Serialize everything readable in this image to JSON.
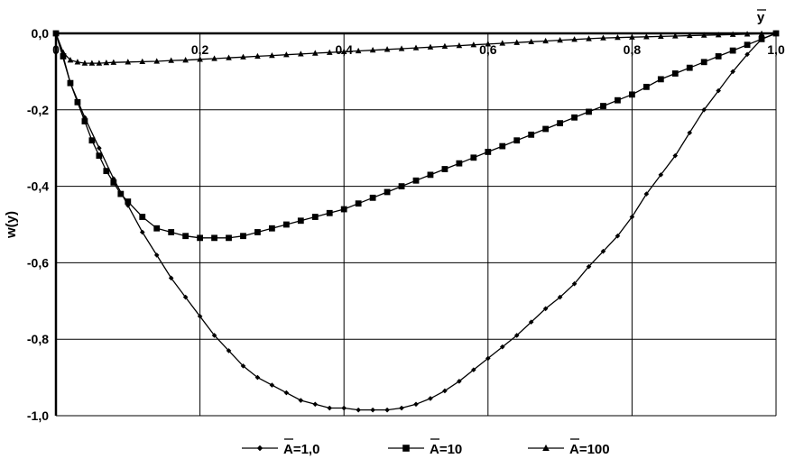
{
  "chart_data": {
    "type": "line",
    "xlabel": "y",
    "ylabel": "w(y)",
    "xlim": [
      0,
      1
    ],
    "ylim": [
      -1,
      0
    ],
    "x_ticks": [
      "0",
      "0,2",
      "0,4",
      "0,6",
      "0,8",
      "1,0"
    ],
    "y_ticks": [
      "0,0",
      "-0,2",
      "-0,4",
      "-0,6",
      "-0,8",
      "-1,0"
    ],
    "grid": true,
    "legend_position": "bottom",
    "series": [
      {
        "name": "A=1,0",
        "marker": "diamond",
        "x": [
          0,
          0.02,
          0.04,
          0.06,
          0.08,
          0.1,
          0.12,
          0.14,
          0.16,
          0.18,
          0.2,
          0.22,
          0.24,
          0.26,
          0.28,
          0.3,
          0.32,
          0.34,
          0.36,
          0.38,
          0.4,
          0.42,
          0.44,
          0.46,
          0.48,
          0.5,
          0.52,
          0.54,
          0.56,
          0.58,
          0.6,
          0.62,
          0.64,
          0.66,
          0.68,
          0.7,
          0.72,
          0.74,
          0.76,
          0.78,
          0.8,
          0.82,
          0.84,
          0.86,
          0.88,
          0.9,
          0.92,
          0.94,
          0.96,
          0.98,
          1.0
        ],
        "y": [
          0,
          -0.13,
          -0.22,
          -0.3,
          -0.38,
          -0.45,
          -0.52,
          -0.58,
          -0.64,
          -0.69,
          -0.74,
          -0.79,
          -0.83,
          -0.87,
          -0.9,
          -0.92,
          -0.94,
          -0.96,
          -0.97,
          -0.98,
          -0.98,
          -0.985,
          -0.985,
          -0.985,
          -0.98,
          -0.97,
          -0.955,
          -0.935,
          -0.91,
          -0.88,
          -0.85,
          -0.82,
          -0.79,
          -0.755,
          -0.72,
          -0.69,
          -0.655,
          -0.61,
          -0.57,
          -0.53,
          -0.48,
          -0.42,
          -0.37,
          -0.32,
          -0.26,
          -0.2,
          -0.15,
          -0.1,
          -0.055,
          -0.015,
          0
        ]
      },
      {
        "name": "A=10",
        "marker": "square",
        "x": [
          0,
          0.01,
          0.02,
          0.03,
          0.04,
          0.05,
          0.06,
          0.07,
          0.08,
          0.09,
          0.1,
          0.12,
          0.14,
          0.16,
          0.18,
          0.2,
          0.22,
          0.24,
          0.26,
          0.28,
          0.3,
          0.32,
          0.34,
          0.36,
          0.38,
          0.4,
          0.42,
          0.44,
          0.46,
          0.48,
          0.5,
          0.52,
          0.54,
          0.56,
          0.58,
          0.6,
          0.62,
          0.64,
          0.66,
          0.68,
          0.7,
          0.72,
          0.74,
          0.76,
          0.78,
          0.8,
          0.82,
          0.84,
          0.86,
          0.88,
          0.9,
          0.92,
          0.94,
          0.96,
          0.98,
          1.0
        ],
        "y": [
          0,
          -0.06,
          -0.13,
          -0.18,
          -0.23,
          -0.28,
          -0.32,
          -0.36,
          -0.39,
          -0.42,
          -0.44,
          -0.48,
          -0.51,
          -0.52,
          -0.53,
          -0.535,
          -0.535,
          -0.535,
          -0.53,
          -0.52,
          -0.51,
          -0.5,
          -0.49,
          -0.48,
          -0.47,
          -0.46,
          -0.445,
          -0.43,
          -0.415,
          -0.4,
          -0.385,
          -0.37,
          -0.355,
          -0.34,
          -0.325,
          -0.31,
          -0.295,
          -0.28,
          -0.265,
          -0.25,
          -0.235,
          -0.22,
          -0.205,
          -0.19,
          -0.175,
          -0.16,
          -0.14,
          -0.12,
          -0.105,
          -0.09,
          -0.075,
          -0.06,
          -0.045,
          -0.03,
          -0.015,
          0
        ]
      },
      {
        "name": "A=100",
        "marker": "triangle",
        "x": [
          0,
          0.01,
          0.02,
          0.03,
          0.04,
          0.05,
          0.06,
          0.07,
          0.08,
          0.1,
          0.12,
          0.14,
          0.16,
          0.18,
          0.2,
          0.22,
          0.24,
          0.26,
          0.28,
          0.3,
          0.32,
          0.34,
          0.36,
          0.38,
          0.4,
          0.42,
          0.44,
          0.46,
          0.48,
          0.5,
          0.52,
          0.54,
          0.56,
          0.58,
          0.6,
          0.62,
          0.64,
          0.66,
          0.68,
          0.7,
          0.72,
          0.74,
          0.76,
          0.78,
          0.8,
          0.82,
          0.84,
          0.86,
          0.88,
          0.9,
          0.92,
          0.94,
          0.96,
          0.98,
          1.0
        ],
        "y": [
          0,
          -0.05,
          -0.07,
          -0.075,
          -0.078,
          -0.078,
          -0.078,
          -0.077,
          -0.076,
          -0.075,
          -0.074,
          -0.073,
          -0.071,
          -0.07,
          -0.068,
          -0.066,
          -0.064,
          -0.062,
          -0.06,
          -0.058,
          -0.056,
          -0.054,
          -0.052,
          -0.05,
          -0.048,
          -0.046,
          -0.044,
          -0.042,
          -0.04,
          -0.038,
          -0.036,
          -0.034,
          -0.032,
          -0.03,
          -0.028,
          -0.026,
          -0.024,
          -0.022,
          -0.02,
          -0.018,
          -0.016,
          -0.014,
          -0.012,
          -0.011,
          -0.01,
          -0.009,
          -0.008,
          -0.007,
          -0.006,
          -0.005,
          -0.004,
          -0.003,
          -0.002,
          -0.001,
          0
        ]
      }
    ]
  }
}
